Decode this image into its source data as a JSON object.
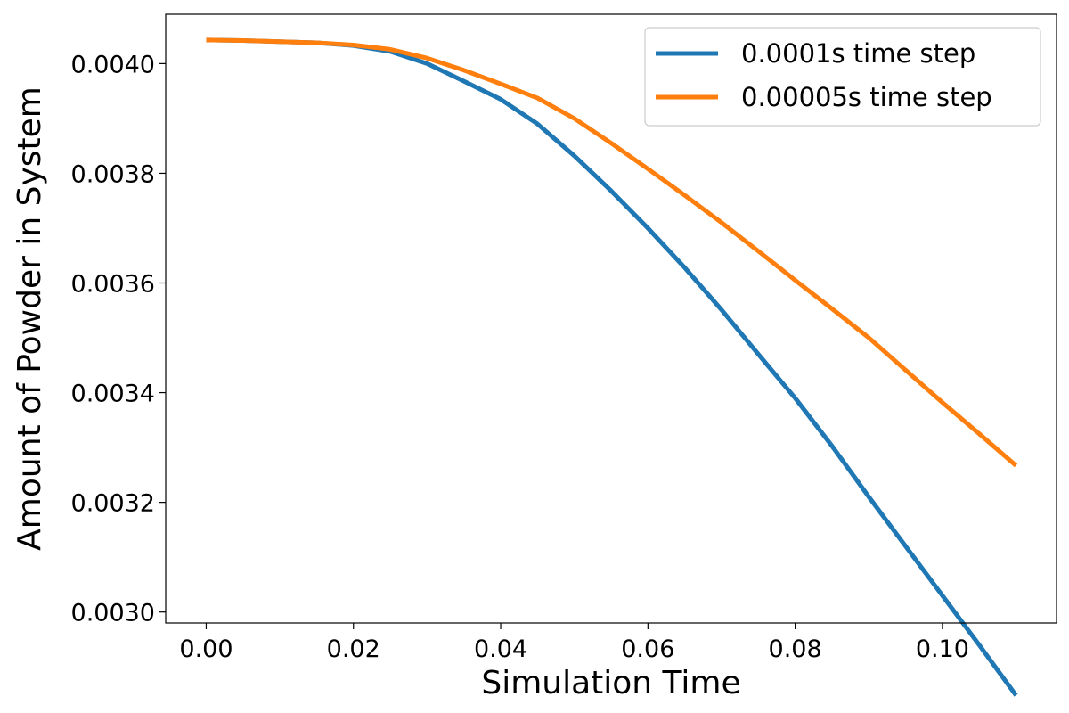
{
  "chart_data": {
    "type": "line",
    "title": "",
    "xlabel": "Simulation Time",
    "ylabel": "Amount of Powder in System",
    "xlim": [
      -0.0055,
      0.1155
    ],
    "ylim": [
      0.00298,
      0.00409
    ],
    "xticks": [
      0.0,
      0.02,
      0.04,
      0.06,
      0.08,
      0.1
    ],
    "xtick_labels": [
      "0.00",
      "0.02",
      "0.04",
      "0.06",
      "0.08",
      "0.10"
    ],
    "yticks": [
      0.003,
      0.0032,
      0.0034,
      0.0036,
      0.0038,
      0.004
    ],
    "ytick_labels": [
      "0.0030",
      "0.0032",
      "0.0034",
      "0.0036",
      "0.0038",
      "0.0040"
    ],
    "grid": false,
    "legend_position": "top-right",
    "series": [
      {
        "name": "0.0001s time step",
        "color": "#1f77b4",
        "x": [
          0.0,
          0.005,
          0.01,
          0.015,
          0.02,
          0.025,
          0.03,
          0.035,
          0.04,
          0.045,
          0.05,
          0.055,
          0.06,
          0.065,
          0.07,
          0.075,
          0.08,
          0.085,
          0.09,
          0.095,
          0.1,
          0.105,
          0.11
        ],
        "y": [
          0.004043,
          0.004042,
          0.00404,
          0.004038,
          0.004033,
          0.004022,
          0.004,
          0.003968,
          0.003935,
          0.00389,
          0.003832,
          0.003768,
          0.0037,
          0.003628,
          0.003551,
          0.00347,
          0.00339,
          0.003303,
          0.00321,
          0.00312,
          0.00303,
          0.00294,
          0.002848
        ]
      },
      {
        "name": "0.00005s time step",
        "color": "#ff7f0e",
        "x": [
          0.0,
          0.005,
          0.01,
          0.015,
          0.02,
          0.025,
          0.03,
          0.035,
          0.04,
          0.045,
          0.05,
          0.055,
          0.06,
          0.065,
          0.07,
          0.075,
          0.08,
          0.085,
          0.09,
          0.095,
          0.1,
          0.105,
          0.11
        ],
        "y": [
          0.004043,
          0.004042,
          0.00404,
          0.004038,
          0.004034,
          0.004026,
          0.00401,
          0.003988,
          0.003963,
          0.003937,
          0.0039,
          0.003855,
          0.003808,
          0.00376,
          0.00371,
          0.003658,
          0.003605,
          0.003553,
          0.0035,
          0.003441,
          0.003382,
          0.003325,
          0.003267
        ]
      }
    ]
  }
}
